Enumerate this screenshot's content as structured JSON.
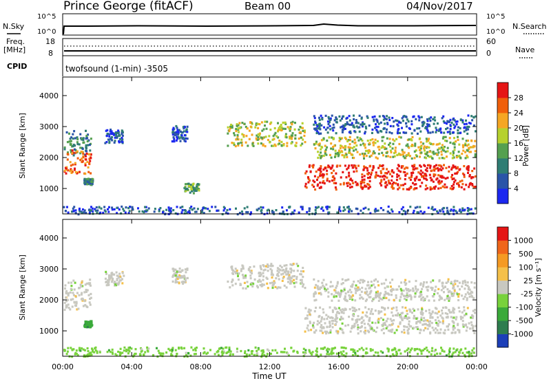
{
  "header": {
    "station": "Prince George (fitACF)",
    "beam": "Beam 00",
    "date": "04/Nov/2017"
  },
  "strip": {
    "nsky_label": "N.Sky",
    "nsky_ticks": [
      "10^5",
      "10^0"
    ],
    "nsearch_label": "N.Search",
    "freq_label_1": "Freq.",
    "freq_label_2": "[MHz]",
    "freq_ticks": [
      "18",
      "8"
    ],
    "nave_ticks": [
      "60",
      "0"
    ],
    "nave_label": "Nave",
    "cpid_label": "CPID",
    "cpid_text": "twofsound (1-min) -3505"
  },
  "chart_data": [
    {
      "type": "heatmap",
      "title": "",
      "xlabel": "Time UT",
      "ylabel": "Slant Range [km]",
      "x_ticks": [
        "00:00",
        "04:00",
        "08:00",
        "12:00",
        "16:00",
        "20:00",
        "00:00"
      ],
      "y_ticks": [
        "1000",
        "2000",
        "3000",
        "4000"
      ],
      "xlim_hours": [
        0,
        24
      ],
      "ylim_km": [
        180,
        4600
      ],
      "colorbar": {
        "label": "Power [dB]",
        "ticks": [
          "4",
          "8",
          "12",
          "16",
          "20",
          "24",
          "28"
        ],
        "range": [
          0,
          31
        ],
        "colors": [
          "#1c28f0",
          "#2a54a8",
          "#2f7d74",
          "#55a050",
          "#b6d12e",
          "#f5a623",
          "#f05f0a",
          "#e51515"
        ]
      },
      "bands": [
        {
          "t0": 0.05,
          "t1": 1.6,
          "r0": 2100,
          "r1": 2900,
          "level": 2
        },
        {
          "t0": 0.05,
          "t1": 1.6,
          "r0": 1500,
          "r1": 2300,
          "level": 6
        },
        {
          "t0": 1.2,
          "t1": 1.7,
          "r0": 1150,
          "r1": 1350,
          "level": 2
        },
        {
          "t0": 2.4,
          "t1": 3.5,
          "r0": 2500,
          "r1": 2950,
          "level": 1
        },
        {
          "t0": 6.3,
          "t1": 7.2,
          "r0": 2550,
          "r1": 3050,
          "level": 1
        },
        {
          "t0": 7.0,
          "t1": 7.9,
          "r0": 880,
          "r1": 1200,
          "level": 3
        },
        {
          "t0": 9.5,
          "t1": 14.0,
          "r0": 2400,
          "r1": 3200,
          "level": 4
        },
        {
          "t0": 14.0,
          "t1": 23.9,
          "r0": 1000,
          "r1": 1800,
          "level": 7
        },
        {
          "t0": 14.5,
          "t1": 23.9,
          "r0": 2000,
          "r1": 2700,
          "level": 4
        },
        {
          "t0": 14.5,
          "t1": 23.9,
          "r0": 2800,
          "r1": 3400,
          "level": 1
        },
        {
          "t0": 0.0,
          "t1": 23.9,
          "r0": 200,
          "r1": 450,
          "level": 1
        }
      ]
    },
    {
      "type": "heatmap",
      "title": "",
      "xlabel": "Time UT",
      "ylabel": "Slant Range [km]",
      "x_ticks": [
        "00:00",
        "04:00",
        "08:00",
        "12:00",
        "16:00",
        "20:00",
        "00:00"
      ],
      "y_ticks": [
        "1000",
        "2000",
        "3000",
        "4000"
      ],
      "xlim_hours": [
        0,
        24
      ],
      "ylim_km": [
        180,
        4600
      ],
      "colorbar": {
        "label": "Velocity [m s⁻¹]",
        "ticks": [
          "1000",
          "500",
          "100",
          "25",
          "-25",
          "-100",
          "-500",
          "-1000"
        ],
        "colors": [
          "#1c3fb8",
          "#2e7d4f",
          "#3aaa3a",
          "#78d23c",
          "#c8c8c0",
          "#f5c04a",
          "#f59a23",
          "#f0661a",
          "#e51515"
        ]
      },
      "bands": [
        {
          "t0": 0.05,
          "t1": 1.6,
          "r0": 1700,
          "r1": 2700,
          "level": 4
        },
        {
          "t0": 1.2,
          "t1": 1.7,
          "r0": 1150,
          "r1": 1350,
          "level": 2
        },
        {
          "t0": 2.4,
          "t1": 3.5,
          "r0": 2500,
          "r1": 2950,
          "level": 4
        },
        {
          "t0": 6.3,
          "t1": 7.2,
          "r0": 2550,
          "r1": 3050,
          "level": 4
        },
        {
          "t0": 9.5,
          "t1": 14.0,
          "r0": 2400,
          "r1": 3200,
          "level": 4
        },
        {
          "t0": 14.0,
          "t1": 23.9,
          "r0": 950,
          "r1": 1800,
          "level": 4
        },
        {
          "t0": 14.5,
          "t1": 23.9,
          "r0": 2000,
          "r1": 2700,
          "level": 4
        },
        {
          "t0": 0.0,
          "t1": 23.9,
          "r0": 200,
          "r1": 500,
          "level": 3
        }
      ]
    }
  ]
}
